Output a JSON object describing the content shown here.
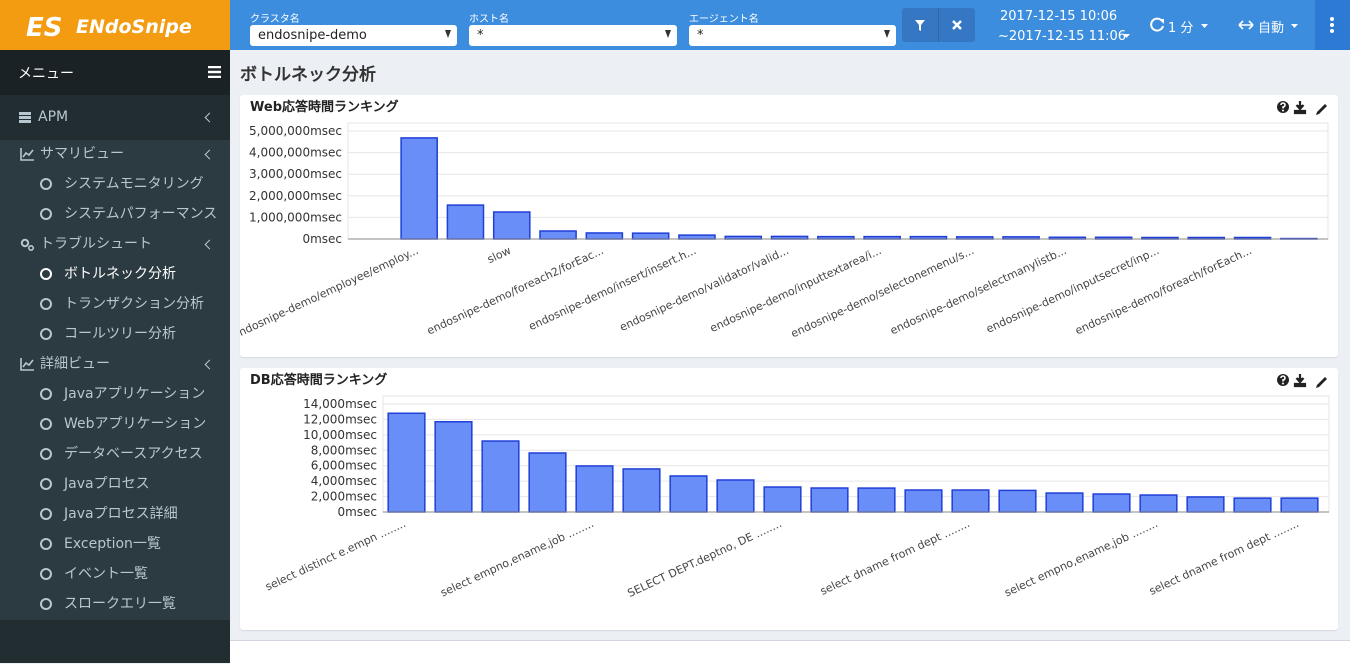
{
  "header": {
    "logo": "ENdoSnipe",
    "filters": [
      {
        "label": "クラスタ名",
        "value": "endosnipe-demo"
      },
      {
        "label": "ホスト名",
        "value": "*"
      },
      {
        "label": "エージェント名",
        "value": "*"
      }
    ],
    "time_from": "2017-12-15 10:06",
    "time_to": "~2017-12-15 11:06",
    "refresh": "1 分",
    "mode": "自動"
  },
  "sidebar": {
    "menu_title": "メニュー",
    "items": [
      {
        "label": "APM",
        "level": 0,
        "icon": "server"
      },
      {
        "label": "サマリビュー",
        "level": 1,
        "icon": "chart"
      },
      {
        "label": "システムモニタリング",
        "level": 2
      },
      {
        "label": "システムパフォーマンス",
        "level": 2
      },
      {
        "label": "トラブルシュート",
        "level": 1,
        "icon": "gear"
      },
      {
        "label": "ボトルネック分析",
        "level": 2,
        "active": true
      },
      {
        "label": "トランザクション分析",
        "level": 2
      },
      {
        "label": "コールツリー分析",
        "level": 2
      },
      {
        "label": "詳細ビュー",
        "level": 1,
        "icon": "chart"
      },
      {
        "label": "Javaアプリケーション",
        "level": 2
      },
      {
        "label": "Webアプリケーション",
        "level": 2
      },
      {
        "label": "データベースアクセス",
        "level": 2
      },
      {
        "label": "Javaプロセス",
        "level": 2
      },
      {
        "label": "Javaプロセス詳細",
        "level": 2
      },
      {
        "label": "Exception一覧",
        "level": 2
      },
      {
        "label": "イベント一覧",
        "level": 2
      },
      {
        "label": "スロークエリ一覧",
        "level": 2
      }
    ]
  },
  "page_title": "ボトルネック分析",
  "chart_data": [
    {
      "type": "bar",
      "title": "Web応答時間ランキング",
      "color": "#6a8ef7",
      "stroke": "#1f3fd8",
      "grid": true,
      "categories": [
        "endosnipe-demo/employee/employ...",
        null,
        "slow",
        null,
        "endosnipe-demo/foreach2/forEac...",
        null,
        "endosnipe-demo/insert/insert.h...",
        null,
        "endosnipe-demo/validator/valid...",
        null,
        "endosnipe-demo/inputtextarea/i...",
        null,
        "endosnipe-demo/selectonemenu/s...",
        null,
        "endosnipe-demo/selectmanylistb...",
        null,
        "endosnipe-demo/inputsecret/inp...",
        null,
        "endosnipe-demo/foreach/forEach...",
        null
      ],
      "values": [
        4680000,
        1570000,
        1250000,
        370000,
        280000,
        270000,
        180000,
        120000,
        120000,
        110000,
        110000,
        110000,
        100000,
        100000,
        80000,
        80000,
        70000,
        70000,
        70000,
        20000
      ],
      "ylim": [
        0,
        5000000
      ],
      "yticks": [
        {
          "value": 0,
          "label": "0msec"
        },
        {
          "value": 1000000,
          "label": "1,000,000msec"
        },
        {
          "value": 2000000,
          "label": "2,000,000msec"
        },
        {
          "value": 3000000,
          "label": "3,000,000msec"
        },
        {
          "value": 4000000,
          "label": "4,000,000msec"
        },
        {
          "value": 5000000,
          "label": "5,000,000msec"
        }
      ]
    },
    {
      "type": "bar",
      "title": "DB応答時間ランキング",
      "color": "#6a8ef7",
      "stroke": "#1f3fd8",
      "grid": true,
      "categories": [
        "select distinct e.empn ........",
        null,
        null,
        null,
        "select empno,ename,job ........",
        null,
        null,
        null,
        "SELECT DEPT.deptno, DE ........",
        null,
        null,
        null,
        "select dname from dept ........",
        null,
        null,
        null,
        "select empno,ename,job ........",
        null,
        null,
        "select dname from dept ........"
      ],
      "values": [
        12800,
        11700,
        9200,
        7650,
        5970,
        5580,
        4670,
        4150,
        3240,
        3110,
        3100,
        2850,
        2850,
        2800,
        2460,
        2330,
        2200,
        1950,
        1800,
        1800
      ],
      "ylim": [
        0,
        14000
      ],
      "yticks": [
        {
          "value": 0,
          "label": "0msec"
        },
        {
          "value": 2000,
          "label": "2,000msec"
        },
        {
          "value": 4000,
          "label": "4,000msec"
        },
        {
          "value": 6000,
          "label": "6,000msec"
        },
        {
          "value": 8000,
          "label": "8,000msec"
        },
        {
          "value": 10000,
          "label": "10,000msec"
        },
        {
          "value": 12000,
          "label": "12,000msec"
        },
        {
          "value": 14000,
          "label": "14,000msec"
        }
      ]
    }
  ]
}
